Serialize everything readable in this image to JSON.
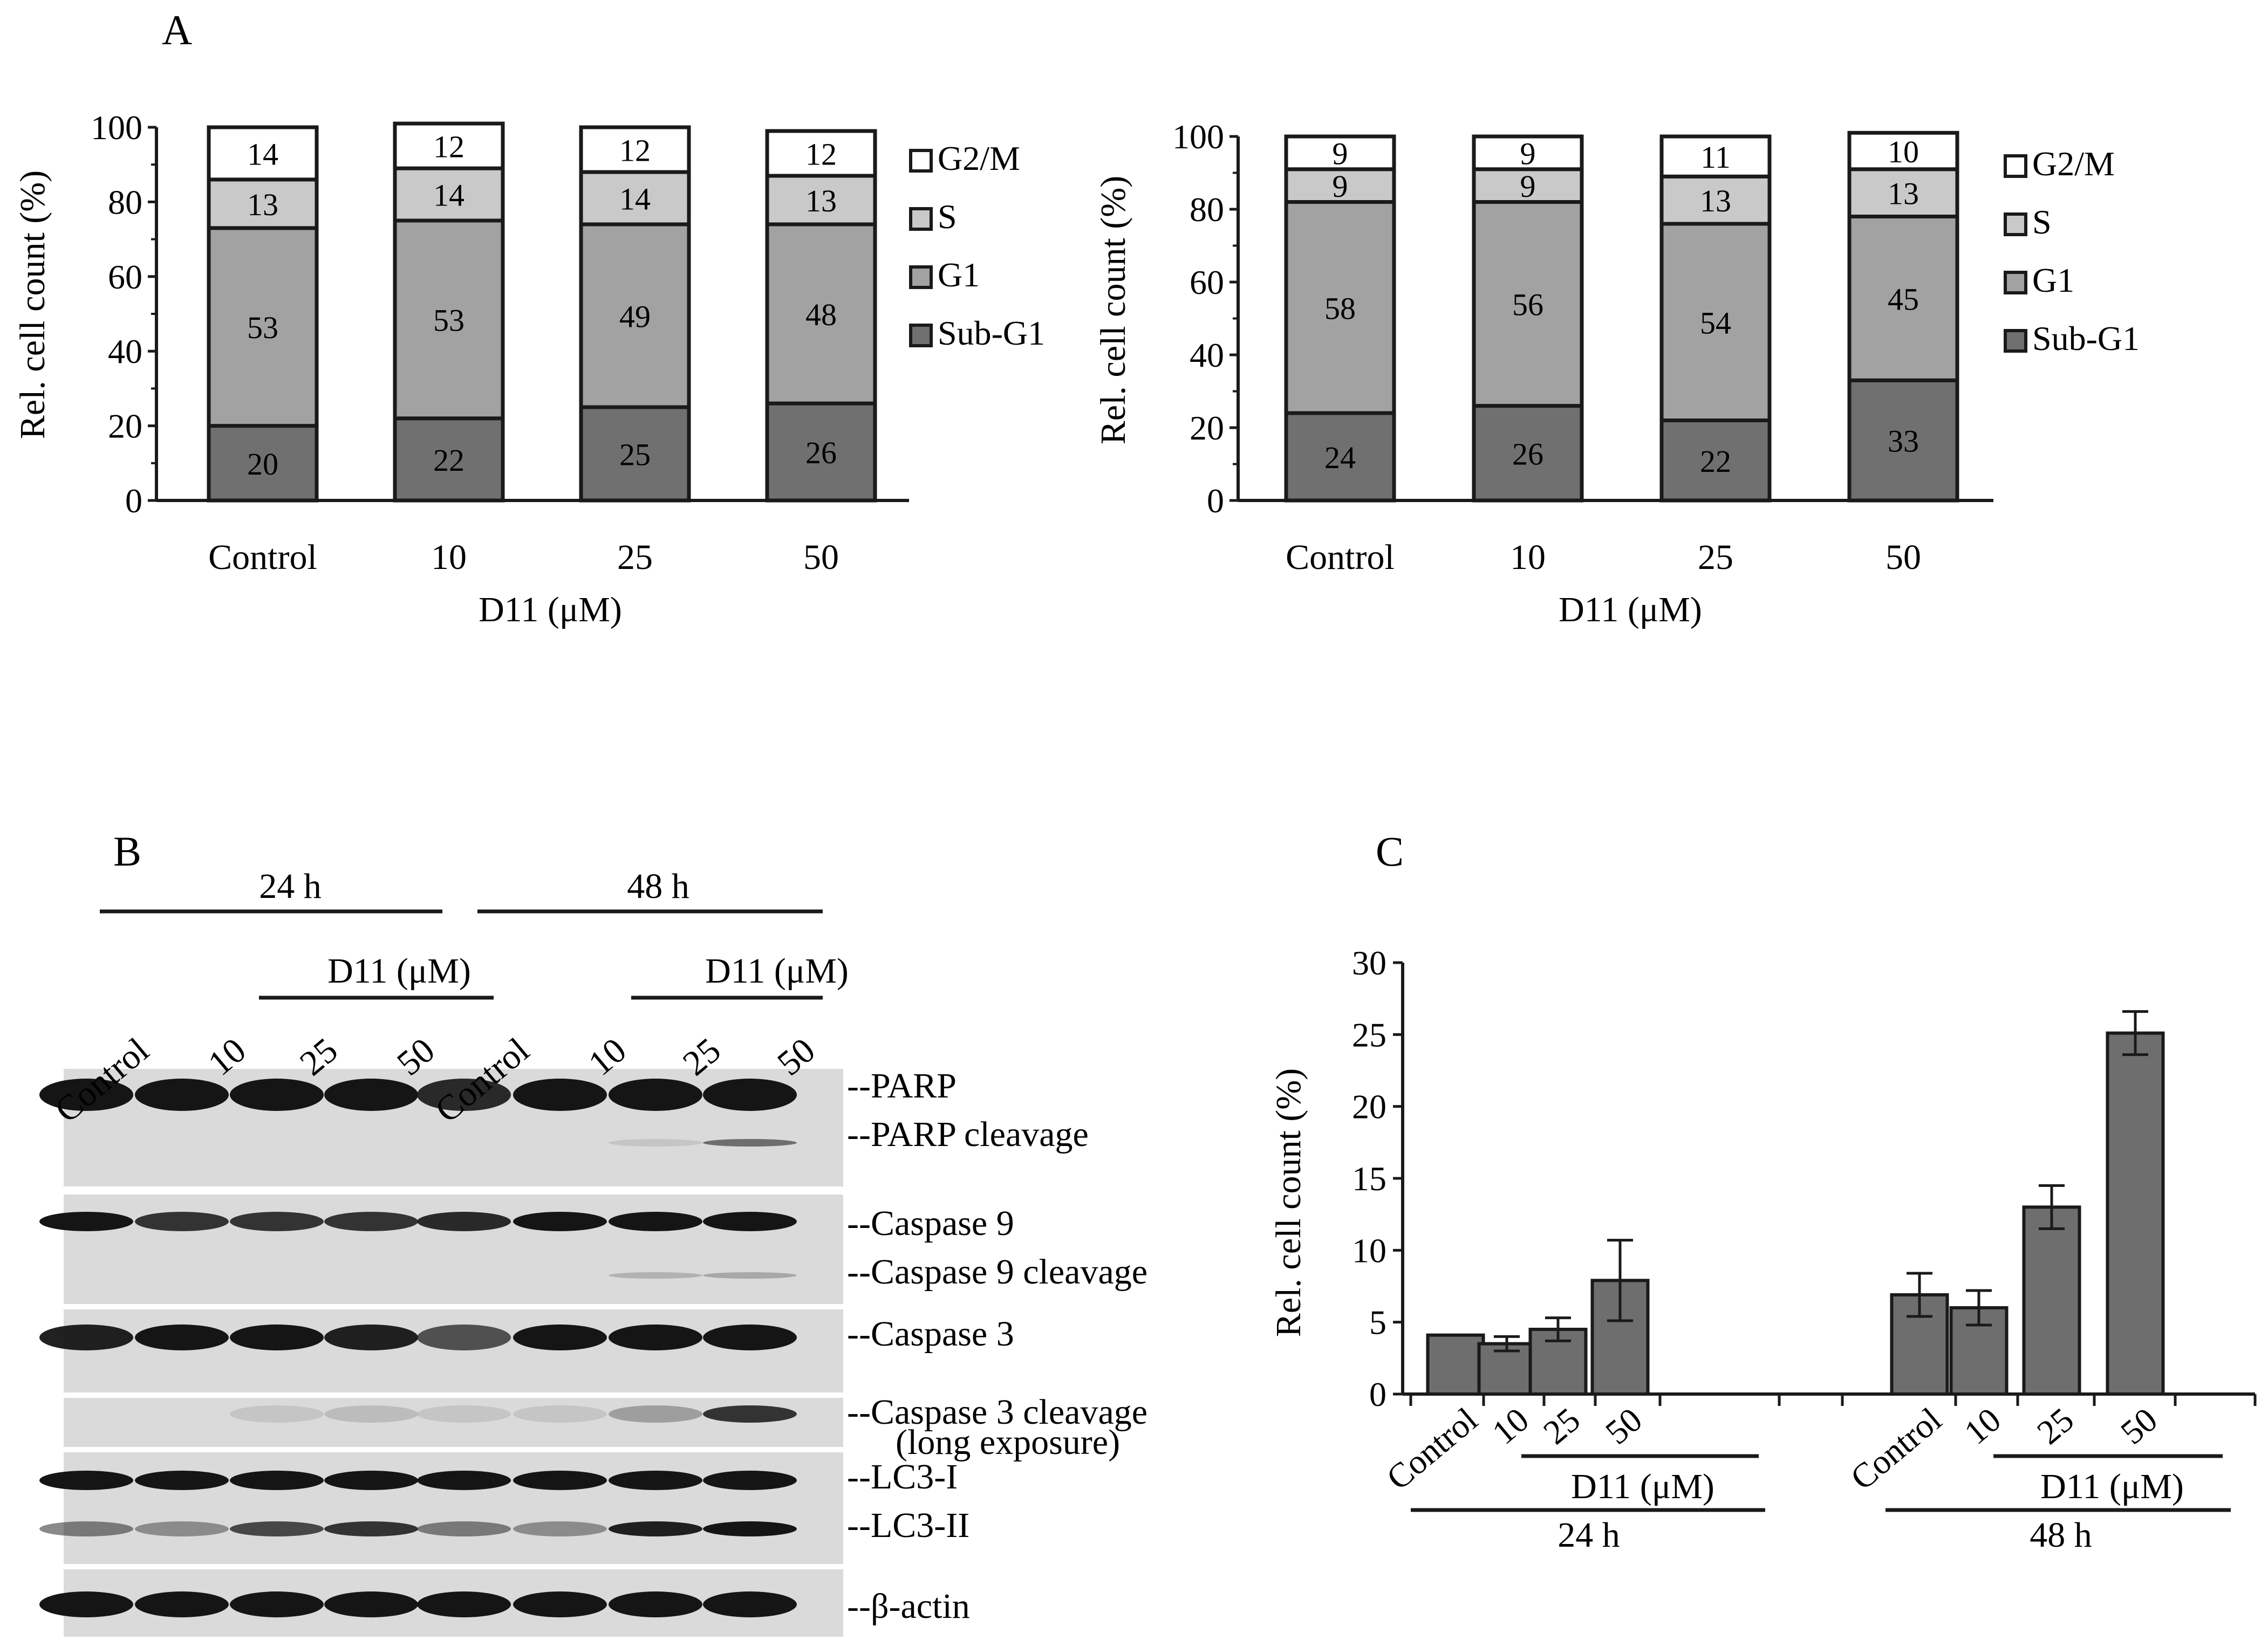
{
  "panels": {
    "a": "A",
    "b": "B",
    "c": "C"
  },
  "colors": {
    "g2m": "#ffffff",
    "s": "#c9c9c9",
    "g1": "#a2a2a2",
    "subg1": "#707070",
    "bar": "#6e6e6e",
    "ink": "#1a1a1a",
    "blot_bg": "#dadada",
    "band": "#151515"
  },
  "chart_data": [
    {
      "id": "A-left",
      "type": "bar",
      "stacked": true,
      "categories": [
        "Control",
        "10",
        "25",
        "50"
      ],
      "xlabel": "D11 (μM)",
      "ylabel": "Rel. cell count (%)",
      "ylim": [
        0,
        100
      ],
      "yticks": [
        0,
        20,
        40,
        60,
        80,
        100
      ],
      "legend_position": "right",
      "series": [
        {
          "name": "Sub-G1",
          "color_key": "subg1",
          "values": [
            20,
            22,
            25,
            26
          ]
        },
        {
          "name": "G1",
          "color_key": "g1",
          "values": [
            53,
            53,
            49,
            48
          ]
        },
        {
          "name": "S",
          "color_key": "s",
          "values": [
            13,
            14,
            14,
            13
          ]
        },
        {
          "name": "G2/M",
          "color_key": "g2m",
          "values": [
            14,
            12,
            12,
            12
          ]
        }
      ]
    },
    {
      "id": "A-right",
      "type": "bar",
      "stacked": true,
      "categories": [
        "Control",
        "10",
        "25",
        "50"
      ],
      "xlabel": "D11 (μM)",
      "ylabel": "Rel. cell count (%)",
      "ylim": [
        0,
        100
      ],
      "yticks": [
        0,
        20,
        40,
        60,
        80,
        100
      ],
      "legend_position": "right",
      "series": [
        {
          "name": "Sub-G1",
          "color_key": "subg1",
          "values": [
            24,
            26,
            22,
            33
          ]
        },
        {
          "name": "G1",
          "color_key": "g1",
          "values": [
            58,
            56,
            54,
            45
          ]
        },
        {
          "name": "S",
          "color_key": "s",
          "values": [
            9,
            9,
            13,
            13
          ]
        },
        {
          "name": "G2/M",
          "color_key": "g2m",
          "values": [
            9,
            9,
            11,
            10
          ]
        }
      ]
    },
    {
      "id": "C",
      "type": "bar",
      "ylabel": "Rel. cell count (%)",
      "ylim": [
        0,
        30
      ],
      "yticks": [
        0,
        5,
        10,
        15,
        20,
        25,
        30
      ],
      "groups": [
        {
          "label": "24 h",
          "treatment_label": "D11 (μM)",
          "categories": [
            "Control",
            "10",
            "25",
            "50"
          ],
          "values": [
            4.1,
            3.5,
            4.5,
            7.9
          ],
          "errors": [
            0,
            0.5,
            0.8,
            2.8
          ]
        },
        {
          "label": "48 h",
          "treatment_label": "D11 (μM)",
          "categories": [
            "Control",
            "10",
            "25",
            "50"
          ],
          "values": [
            6.9,
            6.0,
            13.0,
            25.1
          ],
          "errors": [
            1.5,
            1.2,
            1.5,
            1.5
          ]
        }
      ]
    }
  ],
  "blot": {
    "time_labels": [
      "24 h",
      "48 h"
    ],
    "treatment_label": "D11 (μM)",
    "lane_labels": [
      "Control",
      "10",
      "25",
      "50",
      "Control",
      "10",
      "25",
      "50"
    ],
    "bands": [
      {
        "label": "--PARP",
        "line2": ""
      },
      {
        "label": "--PARP cleavage",
        "line2": ""
      },
      {
        "label": "--Caspase 9",
        "line2": ""
      },
      {
        "label": "--Caspase 9 cleavage",
        "line2": ""
      },
      {
        "label": "--Caspase 3",
        "line2": ""
      },
      {
        "label": "--Caspase 3 cleavage",
        "line2": "(long exposure)"
      },
      {
        "label": "--LC3-I",
        "line2": ""
      },
      {
        "label": "--LC3-II",
        "line2": ""
      },
      {
        "label": "--β-actin",
        "line2": ""
      }
    ]
  }
}
